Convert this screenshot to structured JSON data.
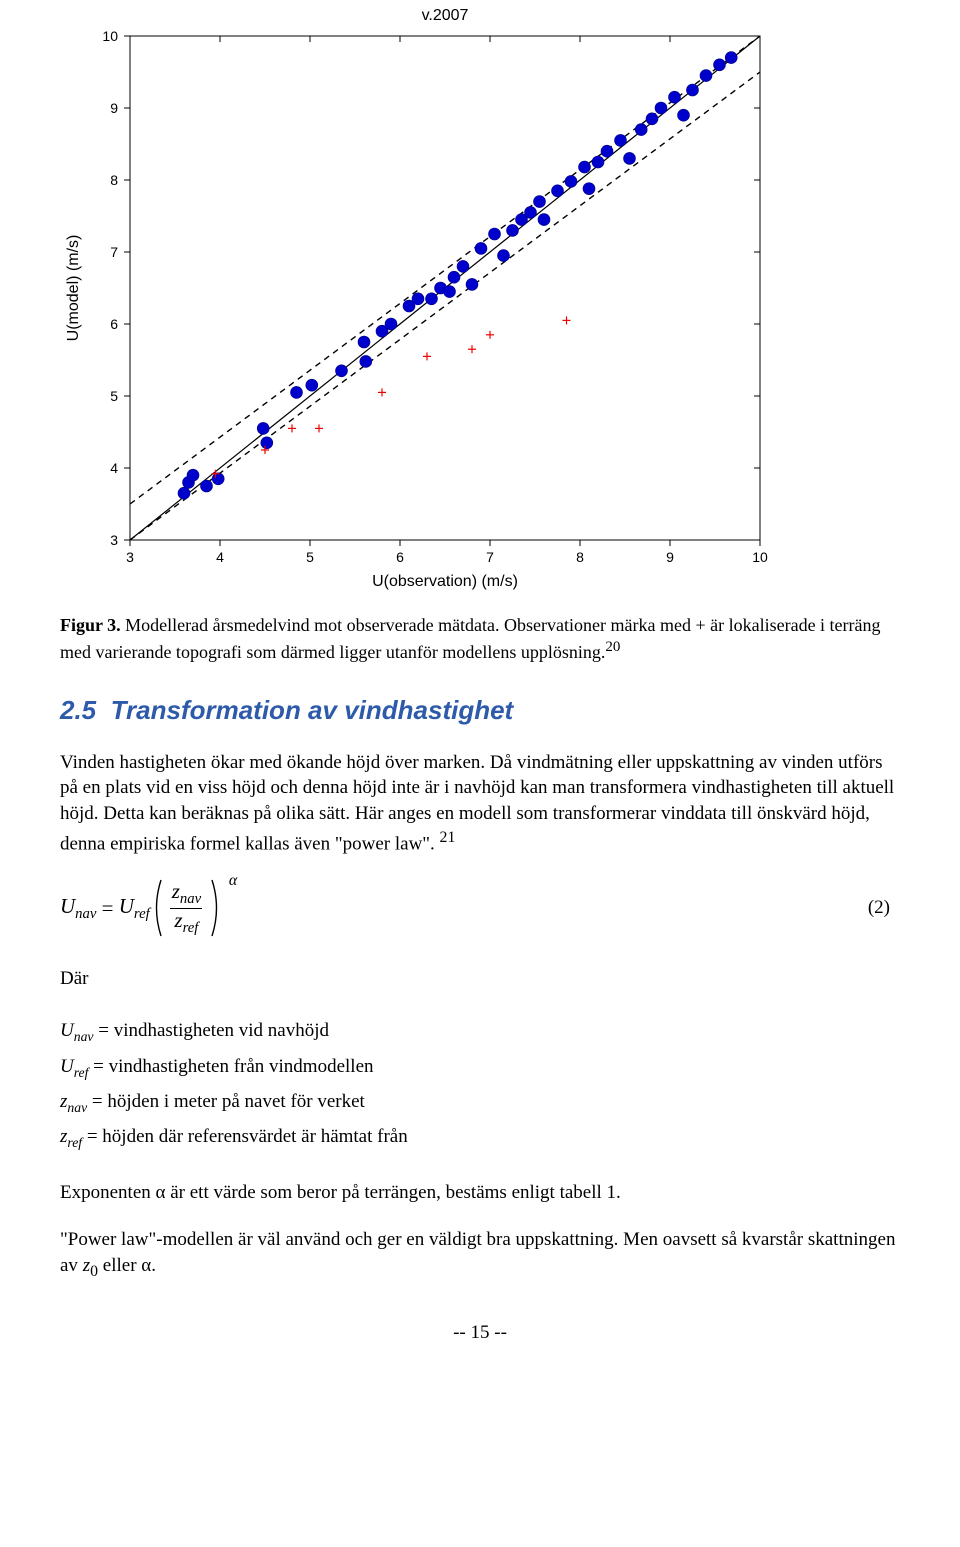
{
  "chart": {
    "type": "scatter",
    "title": "v.2007",
    "xlabel": "U(observation) (m/s)",
    "ylabel": "U(model) (m/s)",
    "xlim": [
      3,
      10
    ],
    "ylim": [
      3,
      10
    ],
    "xticks": [
      3,
      4,
      5,
      6,
      7,
      8,
      9,
      10
    ],
    "yticks": [
      3,
      4,
      5,
      6,
      7,
      8,
      9,
      10
    ],
    "background_color": "#ffffff",
    "axis_color": "#000000",
    "tick_font_size": 14,
    "label_font_size": 16,
    "main_line": {
      "color": "#000000",
      "width": 1.2,
      "dash": "none",
      "x": [
        3,
        10
      ],
      "y": [
        3,
        10
      ]
    },
    "upper_line": {
      "color": "#000000",
      "width": 1.4,
      "dash": "6,5",
      "x": [
        3,
        10
      ],
      "y": [
        3.5,
        10.5
      ]
    },
    "lower_line": {
      "color": "#000000",
      "width": 1.4,
      "dash": "6,5",
      "x": [
        3,
        10
      ],
      "y": [
        2.5,
        9.5
      ]
    },
    "dot_series": {
      "marker": "circle",
      "size": 6,
      "fill": "#0000cd",
      "edge": "#000080",
      "points": [
        [
          3.6,
          3.65
        ],
        [
          3.65,
          3.8
        ],
        [
          3.7,
          3.9
        ],
        [
          3.85,
          3.75
        ],
        [
          3.98,
          3.85
        ],
        [
          4.48,
          4.55
        ],
        [
          4.52,
          4.35
        ],
        [
          4.85,
          5.05
        ],
        [
          5.02,
          5.15
        ],
        [
          5.35,
          5.35
        ],
        [
          5.6,
          5.75
        ],
        [
          5.62,
          5.48
        ],
        [
          5.8,
          5.9
        ],
        [
          5.9,
          6.0
        ],
        [
          6.1,
          6.25
        ],
        [
          6.2,
          6.35
        ],
        [
          6.35,
          6.35
        ],
        [
          6.45,
          6.5
        ],
        [
          6.55,
          6.45
        ],
        [
          6.6,
          6.65
        ],
        [
          6.7,
          6.8
        ],
        [
          6.8,
          6.55
        ],
        [
          6.9,
          7.05
        ],
        [
          7.05,
          7.25
        ],
        [
          7.15,
          6.95
        ],
        [
          7.25,
          7.3
        ],
        [
          7.35,
          7.45
        ],
        [
          7.45,
          7.55
        ],
        [
          7.55,
          7.7
        ],
        [
          7.6,
          7.45
        ],
        [
          7.75,
          7.85
        ],
        [
          7.9,
          7.98
        ],
        [
          8.05,
          8.18
        ],
        [
          8.1,
          7.88
        ],
        [
          8.2,
          8.25
        ],
        [
          8.3,
          8.4
        ],
        [
          8.45,
          8.55
        ],
        [
          8.55,
          8.3
        ],
        [
          8.68,
          8.7
        ],
        [
          8.8,
          8.85
        ],
        [
          8.9,
          9.0
        ],
        [
          9.05,
          9.15
        ],
        [
          9.15,
          8.9
        ],
        [
          9.25,
          9.25
        ],
        [
          9.4,
          9.45
        ],
        [
          9.55,
          9.6
        ],
        [
          9.68,
          9.7
        ]
      ]
    },
    "plus_series": {
      "marker": "plus",
      "size": 8,
      "color": "#ee0000",
      "width": 1.2,
      "points": [
        [
          3.95,
          3.92
        ],
        [
          4.5,
          4.25
        ],
        [
          4.8,
          4.55
        ],
        [
          5.1,
          4.55
        ],
        [
          5.8,
          5.05
        ],
        [
          6.3,
          5.55
        ],
        [
          6.8,
          5.65
        ],
        [
          7.0,
          5.85
        ],
        [
          7.85,
          6.05
        ]
      ]
    }
  },
  "caption": {
    "label": "Figur 3.",
    "text": "Modellerad årsmedelvind mot observerade mätdata. Observationer märka med + är lokaliserade i terräng med varierande topografi som därmed ligger utanför modellens upplösning.",
    "footnote": "20"
  },
  "section": {
    "number": "2.5",
    "title": "Transformation av vindhastighet"
  },
  "para1": "Vinden hastigheten ökar med ökande höjd över marken. Då vindmätning eller uppskattning av vinden utförs på en plats vid en viss höjd och denna höjd inte är i navhöjd kan man transformera vindhastigheten till aktuell höjd. Detta kan beräknas på olika sätt. Här anges en modell som transformerar vinddata till önskvärd höjd, denna empiriska formel kallas även \"power law\".",
  "para1_footnote": "21",
  "equation": {
    "number": "(2)"
  },
  "where_label": "Där",
  "defs": {
    "Unav": "= vindhastigheten vid navhöjd",
    "Uref": "= vindhastigheten från vindmodellen",
    "znav": "= höjden i meter på navet för verket",
    "zref": "= höjden där referensvärdet är hämtat från"
  },
  "para2_a": "Exponenten ",
  "para2_b": " är ett värde som beror på terrängen, bestäms enligt tabell 1.",
  "para3_a": "\"Power law\"-modellen är väl använd och ger en väldigt bra uppskattning. Men oavsett så kvarstår skattningen av ",
  "para3_b": " eller ",
  "para3_c": ".",
  "footer": "-- 15 --"
}
